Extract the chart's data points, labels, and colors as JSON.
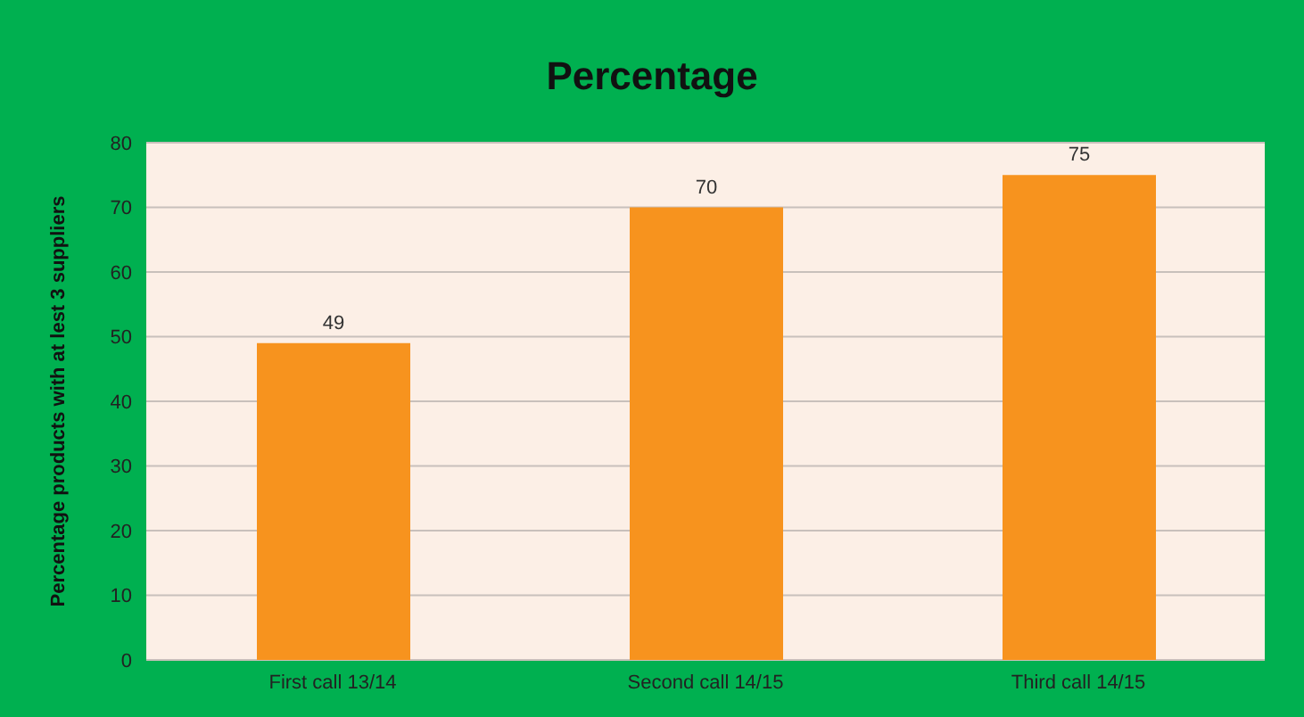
{
  "chart_data": {
    "type": "bar",
    "title": "Percentage",
    "ylabel": "Percentage products with at lest 3 suppliers",
    "categories": [
      "First call 13/14",
      "Second call 14/15",
      "Third call 14/15"
    ],
    "values": [
      49,
      70,
      75
    ],
    "color": "#f7931e",
    "ylim": [
      0,
      80
    ],
    "yticks": [
      0,
      10,
      20,
      30,
      40,
      50,
      60,
      70,
      80
    ],
    "grid": "y",
    "data_labels": true
  }
}
